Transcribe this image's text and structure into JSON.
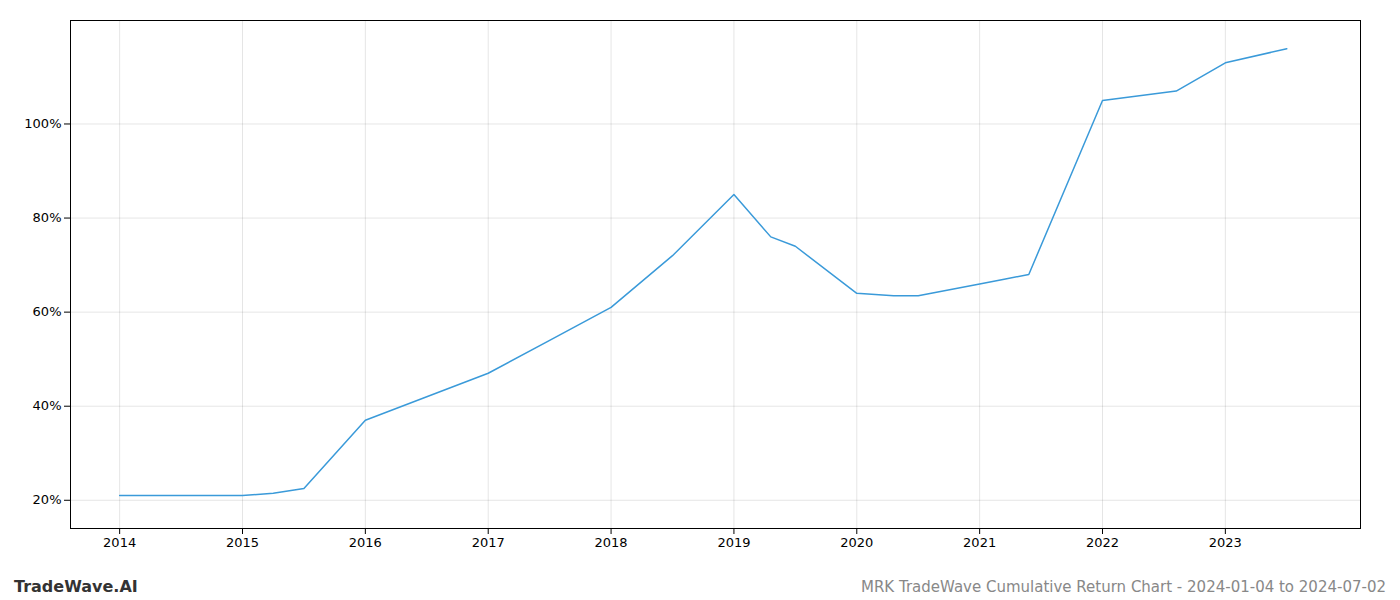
{
  "chart_data": {
    "type": "line",
    "title": "MRK TradeWave Cumulative Return Chart - 2024-01-04 to 2024-07-02",
    "annotations": [
      "TradeWave.AI"
    ],
    "x": [
      2014,
      2014.5,
      2015,
      2015.25,
      2015.5,
      2016,
      2016.5,
      2017,
      2017.5,
      2018,
      2018.5,
      2019,
      2019.3,
      2019.5,
      2020,
      2020.3,
      2020.5,
      2021,
      2021.2,
      2021.4,
      2022,
      2022.3,
      2022.6,
      2023,
      2023.5
    ],
    "values": [
      21,
      21,
      21,
      21.5,
      22.5,
      37,
      42,
      47,
      54,
      61,
      72,
      85,
      76,
      74,
      64,
      63.5,
      63.5,
      66,
      67,
      68,
      105,
      106,
      107,
      113,
      116
    ],
    "color": "#3a9ad9",
    "xlim": [
      2013.6,
      2024.1
    ],
    "xticks": [
      2014,
      2015,
      2016,
      2017,
      2018,
      2019,
      2020,
      2021,
      2022,
      2023
    ],
    "ylim": [
      14,
      122
    ],
    "yticks": [
      {
        "value": 20,
        "label": "20%"
      },
      {
        "value": 40,
        "label": "40%"
      },
      {
        "value": 60,
        "label": "60%"
      },
      {
        "value": 80,
        "label": "80%"
      },
      {
        "value": 100,
        "label": "100%"
      }
    ],
    "grid": true
  }
}
